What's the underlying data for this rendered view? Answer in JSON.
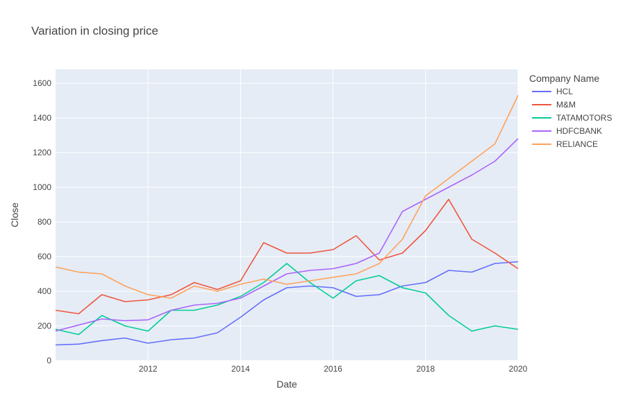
{
  "chart_data": {
    "type": "line",
    "title": "Variation in closing price",
    "xlabel": "Date",
    "ylabel": "Close",
    "legend_title": "Company Name",
    "legend_position": "right",
    "grid": true,
    "xlim": [
      2010.0,
      2020.0
    ],
    "ylim": [
      0,
      1680
    ],
    "x_ticks": [
      {
        "value": 2012,
        "label": "2012"
      },
      {
        "value": 2014,
        "label": "2014"
      },
      {
        "value": 2016,
        "label": "2016"
      },
      {
        "value": 2018,
        "label": "2018"
      },
      {
        "value": 2020,
        "label": "2020"
      }
    ],
    "y_ticks": [
      {
        "value": 0,
        "label": "0"
      },
      {
        "value": 200,
        "label": "200"
      },
      {
        "value": 400,
        "label": "400"
      },
      {
        "value": 600,
        "label": "600"
      },
      {
        "value": 800,
        "label": "800"
      },
      {
        "value": 1000,
        "label": "1000"
      },
      {
        "value": 1200,
        "label": "1200"
      },
      {
        "value": 1400,
        "label": "1400"
      },
      {
        "value": 1600,
        "label": "1600"
      }
    ],
    "x": [
      2010.0,
      2010.5,
      2011.0,
      2011.5,
      2012.0,
      2012.5,
      2013.0,
      2013.5,
      2014.0,
      2014.5,
      2015.0,
      2015.5,
      2016.0,
      2016.5,
      2017.0,
      2017.5,
      2018.0,
      2018.5,
      2019.0,
      2019.5,
      2020.0
    ],
    "series": [
      {
        "name": "HCL",
        "color": "#636efa",
        "values": [
          90,
          95,
          115,
          130,
          100,
          120,
          130,
          160,
          250,
          350,
          420,
          430,
          420,
          370,
          380,
          430,
          450,
          520,
          510,
          560,
          570
        ]
      },
      {
        "name": "M&M",
        "color": "#ef553b",
        "values": [
          290,
          270,
          380,
          340,
          350,
          380,
          450,
          410,
          460,
          680,
          620,
          620,
          640,
          720,
          580,
          620,
          750,
          930,
          700,
          620,
          530
        ]
      },
      {
        "name": "TATAMOTORS",
        "color": "#00cc96",
        "values": [
          180,
          150,
          260,
          200,
          170,
          290,
          290,
          320,
          370,
          450,
          560,
          450,
          360,
          460,
          490,
          420,
          390,
          260,
          170,
          200,
          180
        ]
      },
      {
        "name": "HDFCBANK",
        "color": "#ab63fa",
        "values": [
          170,
          205,
          240,
          230,
          235,
          290,
          320,
          330,
          360,
          430,
          500,
          520,
          530,
          560,
          620,
          860,
          930,
          1000,
          1070,
          1150,
          1280
        ]
      },
      {
        "name": "RELIANCE",
        "color": "#ffa15a",
        "values": [
          540,
          510,
          500,
          430,
          380,
          360,
          430,
          400,
          440,
          470,
          440,
          460,
          480,
          500,
          560,
          700,
          950,
          1050,
          1150,
          1250,
          1530
        ]
      }
    ]
  }
}
